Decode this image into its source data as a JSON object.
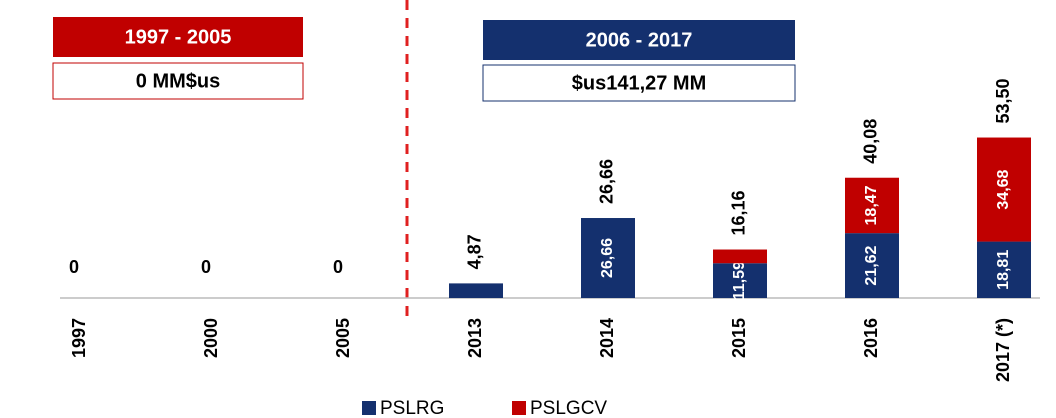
{
  "chart_data": {
    "type": "stacked_bar",
    "categories": [
      "1997",
      "2000",
      "2005",
      "2013",
      "2014",
      "2015",
      "2016",
      "2017 (*)"
    ],
    "series": [
      {
        "name": "PSLRG",
        "color": "#14306e",
        "values": [
          0,
          0,
          0,
          4.87,
          26.66,
          11.59,
          21.62,
          18.81
        ],
        "value_labels": [
          null,
          null,
          null,
          null,
          "26,66",
          "11,59",
          "21,62",
          "18,81"
        ]
      },
      {
        "name": "PSLGCV",
        "color": "#c00000",
        "values": [
          0,
          0,
          0,
          0,
          0,
          4.57,
          18.47,
          34.68
        ],
        "value_labels": [
          null,
          null,
          null,
          null,
          null,
          null,
          "18,47",
          "34,68"
        ]
      }
    ],
    "totals": {
      "values": [
        0,
        0,
        0,
        4.87,
        26.66,
        16.16,
        40.08,
        53.5
      ],
      "value_labels": [
        "0",
        "0",
        "0",
        "4,87",
        "26,66",
        "16,16",
        "40,08",
        "53,50"
      ]
    },
    "ylim": [
      0,
      60
    ],
    "annotations": [
      {
        "period": "1997 - 2005",
        "amount": "0 MM$us"
      },
      {
        "period": "2006 - 2017",
        "amount": "$us141,27 MM"
      }
    ]
  }
}
